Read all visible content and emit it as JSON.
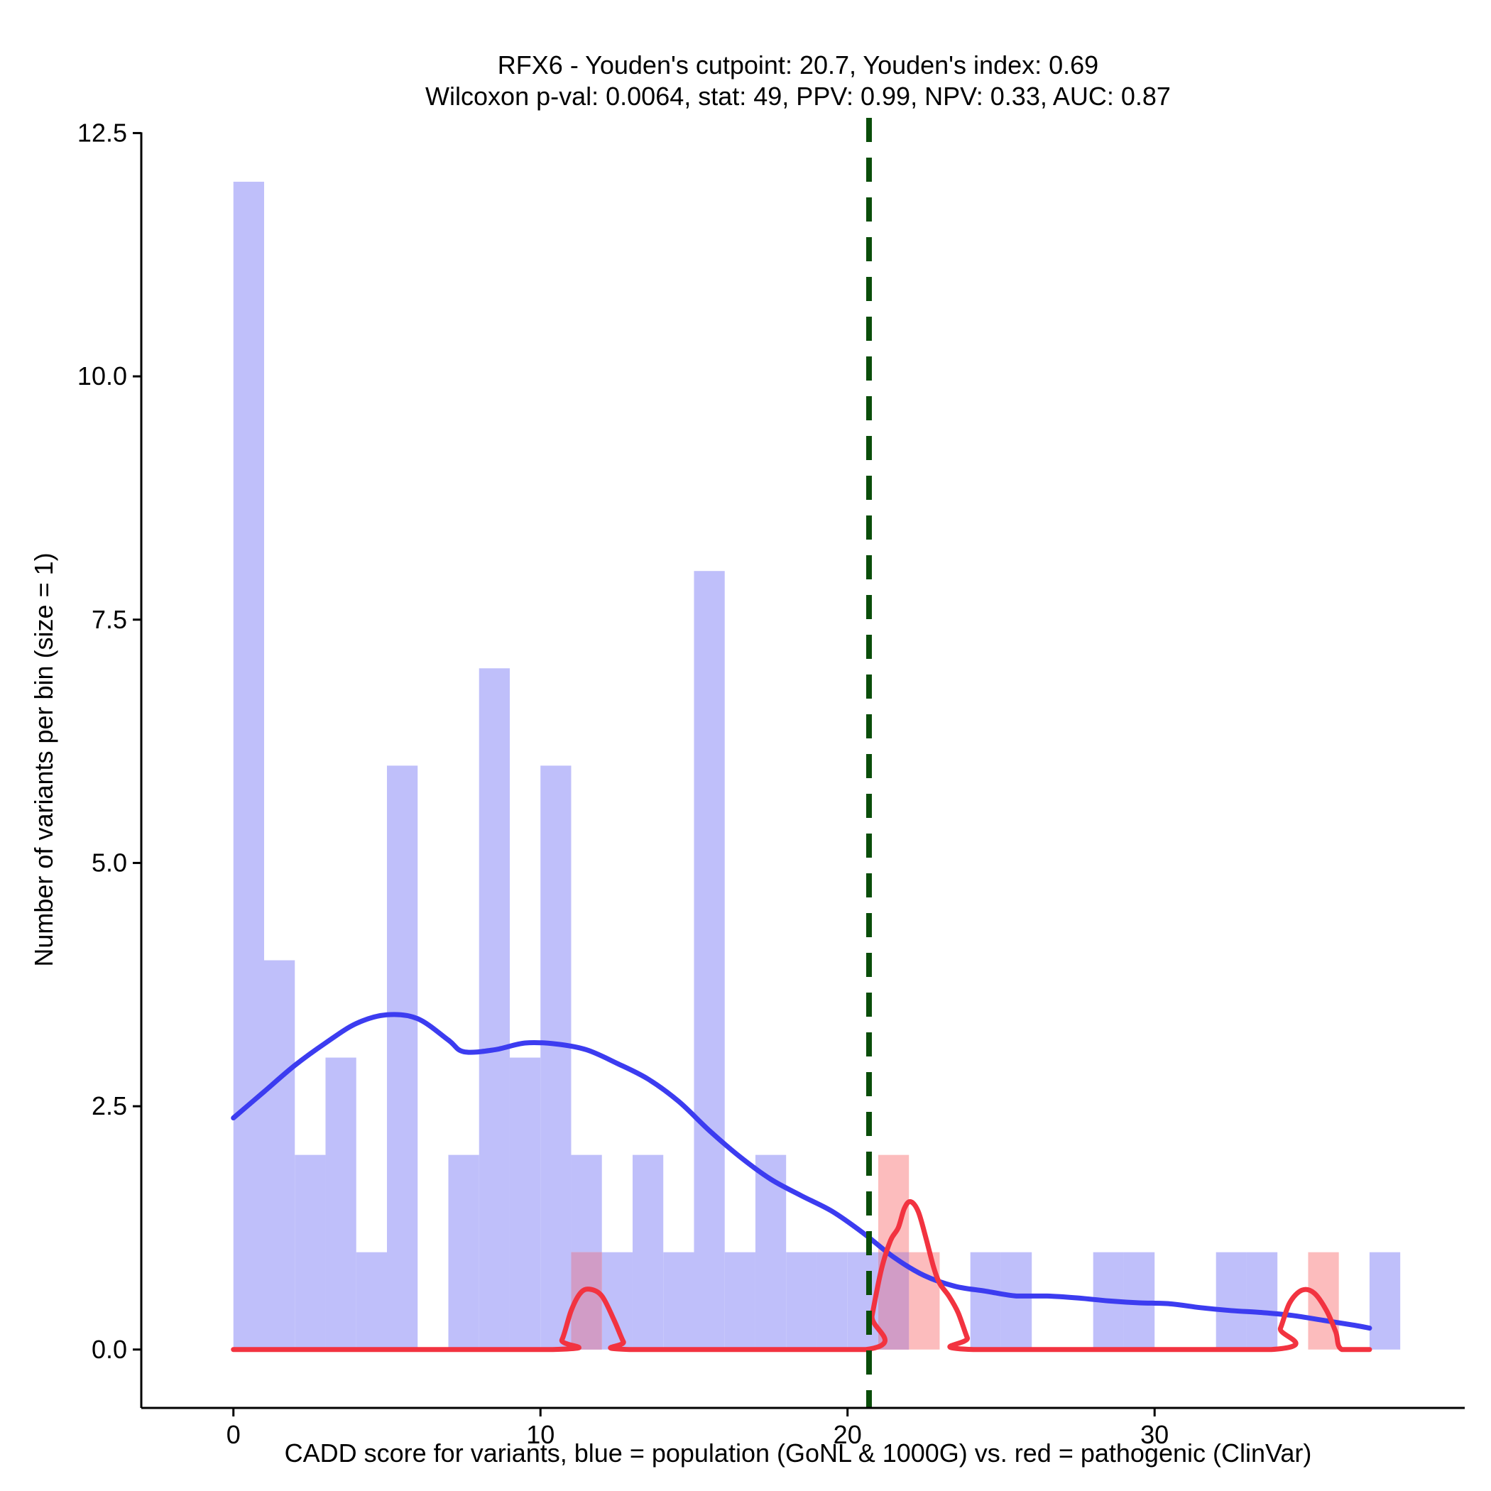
{
  "chart_data": {
    "type": "histogram",
    "title_line1": "RFX6 - Youden's cutpoint: 20.7, Youden's index: 0.69",
    "title_line2": "Wilcoxon p-val: 0.0064, stat: 49, PPV: 0.99, NPV: 0.33, AUC: 0.87",
    "xlabel": "CADD score for variants, blue = population (GoNL & 1000G) vs. red = pathogenic (ClinVar)",
    "ylabel": "Number of variants per bin (size = 1)",
    "xlim": [
      -3,
      40.1
    ],
    "ylim": [
      -0.6,
      12.7
    ],
    "x_ticks": [
      0,
      10,
      20,
      30
    ],
    "x_tick_labels": [
      "0",
      "10",
      "20",
      "30"
    ],
    "y_ticks": [
      0,
      2.5,
      5,
      7.5,
      10,
      12.5
    ],
    "y_tick_labels": [
      "0.0",
      "2.5",
      "5.0",
      "7.5",
      "10.0",
      "12.5"
    ],
    "bin_width": 1,
    "cutpoint": 20.7,
    "colors": {
      "population_bar": "#bfbffa",
      "pathogenic_bar": "#fcbcbd",
      "overlap_bar": "#d19cc6",
      "population_line": "#3c3cf0",
      "pathogenic_line": "#f23340",
      "cutpoint_line": "#0a4d0a",
      "axis": "#000000"
    },
    "series": [
      {
        "name": "population (GoNL & 1000G)",
        "bins": [
          {
            "start": 0,
            "count": 12
          },
          {
            "start": 1,
            "count": 4
          },
          {
            "start": 2,
            "count": 2
          },
          {
            "start": 3,
            "count": 3
          },
          {
            "start": 4,
            "count": 1
          },
          {
            "start": 5,
            "count": 6
          },
          {
            "start": 6,
            "count": 0
          },
          {
            "start": 7,
            "count": 2
          },
          {
            "start": 8,
            "count": 7
          },
          {
            "start": 9,
            "count": 3
          },
          {
            "start": 10,
            "count": 6
          },
          {
            "start": 11,
            "count": 2
          },
          {
            "start": 12,
            "count": 1
          },
          {
            "start": 13,
            "count": 2
          },
          {
            "start": 14,
            "count": 1
          },
          {
            "start": 15,
            "count": 8
          },
          {
            "start": 16,
            "count": 1
          },
          {
            "start": 17,
            "count": 2
          },
          {
            "start": 18,
            "count": 1
          },
          {
            "start": 19,
            "count": 1
          },
          {
            "start": 20,
            "count": 1
          },
          {
            "start": 21,
            "count": 1
          },
          {
            "start": 22,
            "count": 0
          },
          {
            "start": 23,
            "count": 0
          },
          {
            "start": 24,
            "count": 1
          },
          {
            "start": 25,
            "count": 1
          },
          {
            "start": 26,
            "count": 0
          },
          {
            "start": 27,
            "count": 0
          },
          {
            "start": 28,
            "count": 1
          },
          {
            "start": 29,
            "count": 1
          },
          {
            "start": 30,
            "count": 0
          },
          {
            "start": 31,
            "count": 0
          },
          {
            "start": 32,
            "count": 1
          },
          {
            "start": 33,
            "count": 1
          },
          {
            "start": 34,
            "count": 0
          },
          {
            "start": 35,
            "count": 0
          },
          {
            "start": 36,
            "count": 0
          },
          {
            "start": 37,
            "count": 1
          }
        ],
        "density": [
          [
            0,
            2.38
          ],
          [
            1,
            2.65
          ],
          [
            2,
            2.92
          ],
          [
            3,
            3.15
          ],
          [
            4,
            3.35
          ],
          [
            5,
            3.44
          ],
          [
            6,
            3.4
          ],
          [
            7,
            3.18
          ],
          [
            7.5,
            3.06
          ],
          [
            8.5,
            3.08
          ],
          [
            9.5,
            3.15
          ],
          [
            10.5,
            3.14
          ],
          [
            11.5,
            3.08
          ],
          [
            12.5,
            2.94
          ],
          [
            13.5,
            2.78
          ],
          [
            14.5,
            2.55
          ],
          [
            15.5,
            2.25
          ],
          [
            16.5,
            1.98
          ],
          [
            17.5,
            1.75
          ],
          [
            18.5,
            1.58
          ],
          [
            19.5,
            1.42
          ],
          [
            20.5,
            1.2
          ],
          [
            21.5,
            0.95
          ],
          [
            22.5,
            0.76
          ],
          [
            23.5,
            0.65
          ],
          [
            24.5,
            0.6
          ],
          [
            25.5,
            0.55
          ],
          [
            26.5,
            0.55
          ],
          [
            27.5,
            0.53
          ],
          [
            28.5,
            0.5
          ],
          [
            29.5,
            0.48
          ],
          [
            30.5,
            0.47
          ],
          [
            31.5,
            0.43
          ],
          [
            32.5,
            0.4
          ],
          [
            33.5,
            0.38
          ],
          [
            34.5,
            0.35
          ],
          [
            35.5,
            0.3
          ],
          [
            36.5,
            0.25
          ],
          [
            37,
            0.22
          ]
        ]
      },
      {
        "name": "pathogenic (ClinVar)",
        "bins": [
          {
            "start": 11,
            "count": 1
          },
          {
            "start": 21,
            "count": 2
          },
          {
            "start": 22,
            "count": 1
          },
          {
            "start": 35,
            "count": 1
          }
        ],
        "density": [
          [
            0,
            0
          ],
          [
            10.4,
            0
          ],
          [
            10.7,
            0.1
          ],
          [
            11.0,
            0.4
          ],
          [
            11.3,
            0.58
          ],
          [
            11.6,
            0.62
          ],
          [
            12.0,
            0.55
          ],
          [
            12.4,
            0.3
          ],
          [
            12.7,
            0.08
          ],
          [
            12.9,
            0
          ],
          [
            20.6,
            0
          ],
          [
            20.8,
            0.35
          ],
          [
            21.1,
            0.82
          ],
          [
            21.4,
            1.12
          ],
          [
            21.65,
            1.25
          ],
          [
            21.85,
            1.45
          ],
          [
            22.05,
            1.52
          ],
          [
            22.3,
            1.42
          ],
          [
            22.55,
            1.15
          ],
          [
            22.8,
            0.85
          ],
          [
            23.0,
            0.68
          ],
          [
            23.3,
            0.55
          ],
          [
            23.6,
            0.38
          ],
          [
            23.9,
            0.12
          ],
          [
            24.1,
            0
          ],
          [
            33.8,
            0
          ],
          [
            34.1,
            0.22
          ],
          [
            34.4,
            0.48
          ],
          [
            34.8,
            0.61
          ],
          [
            35.2,
            0.58
          ],
          [
            35.6,
            0.4
          ],
          [
            35.9,
            0.18
          ],
          [
            36.1,
            0
          ],
          [
            37,
            0
          ]
        ]
      }
    ]
  }
}
